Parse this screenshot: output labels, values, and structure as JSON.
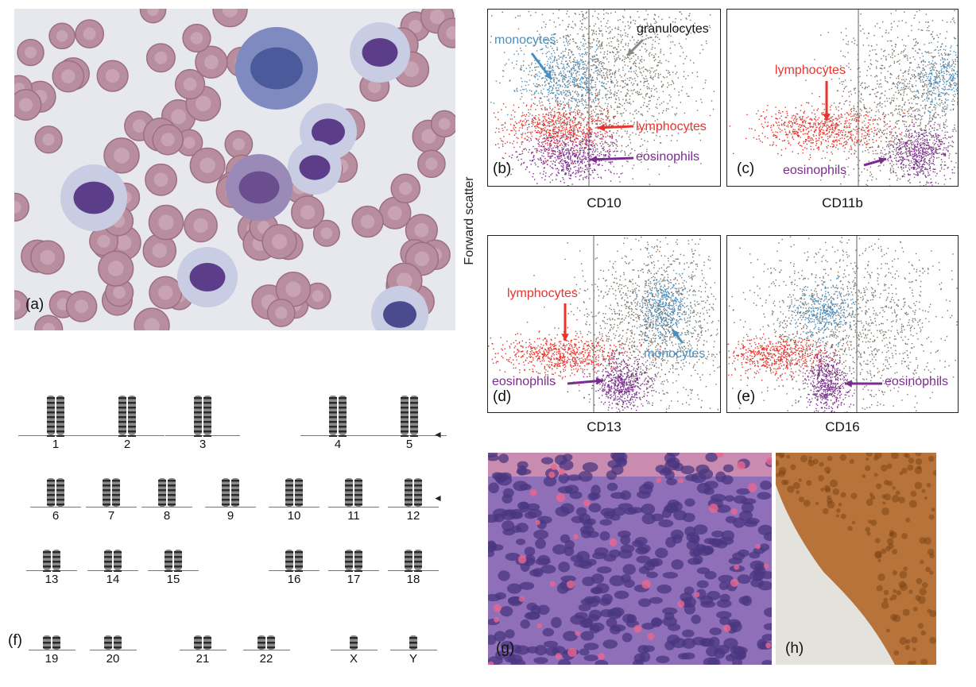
{
  "panels": {
    "a": "(a)",
    "b": "(b)",
    "c": "(c)",
    "d": "(d)",
    "e": "(e)",
    "f": "(f)",
    "g": "(g)",
    "h": "(h)"
  },
  "flow": {
    "y_axis_label": "Forward scatter",
    "x_labels": {
      "b": "CD10",
      "c": "CD11b",
      "d": "CD13",
      "e": "CD16"
    },
    "annotations": {
      "b_monocytes": "monocytes",
      "b_granulocytes": "granulocytes",
      "b_lymphocytes": "lymphocytes",
      "b_eosinophils": "eosinophils",
      "c_lymphocytes": "lymphocytes",
      "c_eosinophils": "eosinophils",
      "d_lymphocytes": "lymphocytes",
      "d_monocytes": "monocytes",
      "d_eosinophils": "eosinophils",
      "e_eosinophils": "eosinophils"
    },
    "colors": {
      "monocytes": "#4a8fbf",
      "granulocytes": "#7a7468",
      "lymphocytes": "#e8342c",
      "eosinophils": "#7b2d8e"
    }
  },
  "karyotype": {
    "rows": [
      [
        "1",
        "2",
        "3",
        "4",
        "5"
      ],
      [
        "6",
        "7",
        "8",
        "9",
        "10",
        "11",
        "12"
      ],
      [
        "13",
        "14",
        "15",
        "16",
        "17",
        "18"
      ],
      [
        "19",
        "20",
        "21",
        "22",
        "X",
        "Y"
      ]
    ]
  }
}
